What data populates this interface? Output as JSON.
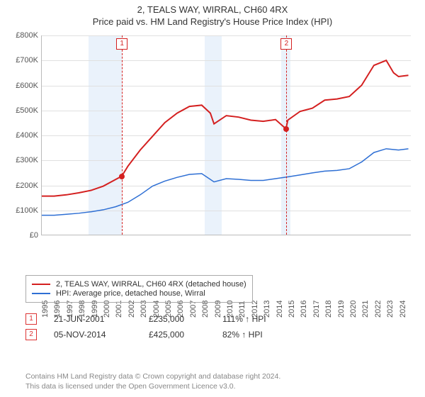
{
  "title_line1": "2, TEALS WAY, WIRRAL, CH60 4RX",
  "title_line2": "Price paid vs. HM Land Registry's House Price Index (HPI)",
  "chart": {
    "type": "line",
    "background_color": "#ffffff",
    "grid_color": "#e0e0e0",
    "axis_color": "#bbbbbb",
    "shade_color": "#eaf2fb",
    "y": {
      "min": 0,
      "max": 800000,
      "step": 100000,
      "ticks": [
        "£0",
        "£100K",
        "£200K",
        "£300K",
        "£400K",
        "£500K",
        "£600K",
        "£700K",
        "£800K"
      ],
      "label_fontsize": 11
    },
    "x": {
      "years": [
        1995,
        1996,
        1997,
        1998,
        1999,
        2000,
        2001,
        2002,
        2003,
        2004,
        2005,
        2006,
        2007,
        2008,
        2009,
        2010,
        2011,
        2012,
        2013,
        2014,
        2015,
        2016,
        2017,
        2018,
        2019,
        2020,
        2021,
        2022,
        2023,
        2024
      ],
      "min": 1995,
      "max": 2025,
      "label_fontsize": 11
    },
    "shade_ranges": [
      {
        "from": 1998.8,
        "to": 2001.5
      },
      {
        "from": 2008.2,
        "to": 2009.6
      },
      {
        "from": 2014.4,
        "to": 2015.2
      }
    ],
    "series": [
      {
        "name": "2, TEALS WAY, WIRRAL, CH60 4RX (detached house)",
        "color": "#d42020",
        "line_width": 2,
        "points": [
          [
            1995,
            155000
          ],
          [
            1996,
            155000
          ],
          [
            1997,
            160000
          ],
          [
            1998,
            168000
          ],
          [
            1999,
            178000
          ],
          [
            2000,
            195000
          ],
          [
            2001.5,
            235000
          ],
          [
            2002,
            275000
          ],
          [
            2003,
            340000
          ],
          [
            2004,
            395000
          ],
          [
            2005,
            450000
          ],
          [
            2006,
            488000
          ],
          [
            2007,
            515000
          ],
          [
            2008,
            520000
          ],
          [
            2008.7,
            488000
          ],
          [
            2009,
            445000
          ],
          [
            2010,
            478000
          ],
          [
            2011,
            472000
          ],
          [
            2012,
            460000
          ],
          [
            2013,
            455000
          ],
          [
            2014,
            462000
          ],
          [
            2014.85,
            425000
          ],
          [
            2015,
            460000
          ],
          [
            2016,
            495000
          ],
          [
            2017,
            508000
          ],
          [
            2018,
            540000
          ],
          [
            2019,
            545000
          ],
          [
            2020,
            555000
          ],
          [
            2021,
            600000
          ],
          [
            2022,
            680000
          ],
          [
            2023,
            700000
          ],
          [
            2023.6,
            650000
          ],
          [
            2024,
            635000
          ],
          [
            2024.8,
            640000
          ]
        ]
      },
      {
        "name": "HPI: Average price, detached house, Wirral",
        "color": "#2e6fd4",
        "line_width": 1.5,
        "points": [
          [
            1995,
            78000
          ],
          [
            1996,
            78000
          ],
          [
            1997,
            82000
          ],
          [
            1998,
            86000
          ],
          [
            1999,
            92000
          ],
          [
            2000,
            100000
          ],
          [
            2001,
            112000
          ],
          [
            2002,
            130000
          ],
          [
            2003,
            160000
          ],
          [
            2004,
            195000
          ],
          [
            2005,
            215000
          ],
          [
            2006,
            230000
          ],
          [
            2007,
            242000
          ],
          [
            2008,
            245000
          ],
          [
            2009,
            212000
          ],
          [
            2010,
            225000
          ],
          [
            2011,
            222000
          ],
          [
            2012,
            218000
          ],
          [
            2013,
            218000
          ],
          [
            2014,
            225000
          ],
          [
            2015,
            232000
          ],
          [
            2016,
            240000
          ],
          [
            2017,
            248000
          ],
          [
            2018,
            255000
          ],
          [
            2019,
            258000
          ],
          [
            2020,
            265000
          ],
          [
            2021,
            292000
          ],
          [
            2022,
            330000
          ],
          [
            2023,
            345000
          ],
          [
            2024,
            340000
          ],
          [
            2024.8,
            345000
          ]
        ]
      }
    ],
    "sale_markers": [
      {
        "num": "1",
        "x": 2001.5,
        "y": 235000,
        "color": "#d42020"
      },
      {
        "num": "2",
        "x": 2014.85,
        "y": 425000,
        "color": "#d42020"
      }
    ]
  },
  "legend": {
    "border_color": "#aaaaaa",
    "items": [
      {
        "label": "2, TEALS WAY, WIRRAL, CH60 4RX (detached house)",
        "color": "#d42020"
      },
      {
        "label": "HPI: Average price, detached house, Wirral",
        "color": "#2e6fd4"
      }
    ]
  },
  "sales": [
    {
      "num": "1",
      "date": "21-JUN-2001",
      "price": "£235,000",
      "pct": "111% ↑ HPI"
    },
    {
      "num": "2",
      "date": "05-NOV-2014",
      "price": "£425,000",
      "pct": "82% ↑ HPI"
    }
  ],
  "footer_line1": "Contains HM Land Registry data © Crown copyright and database right 2024.",
  "footer_line2": "This data is licensed under the Open Government Licence v3.0."
}
